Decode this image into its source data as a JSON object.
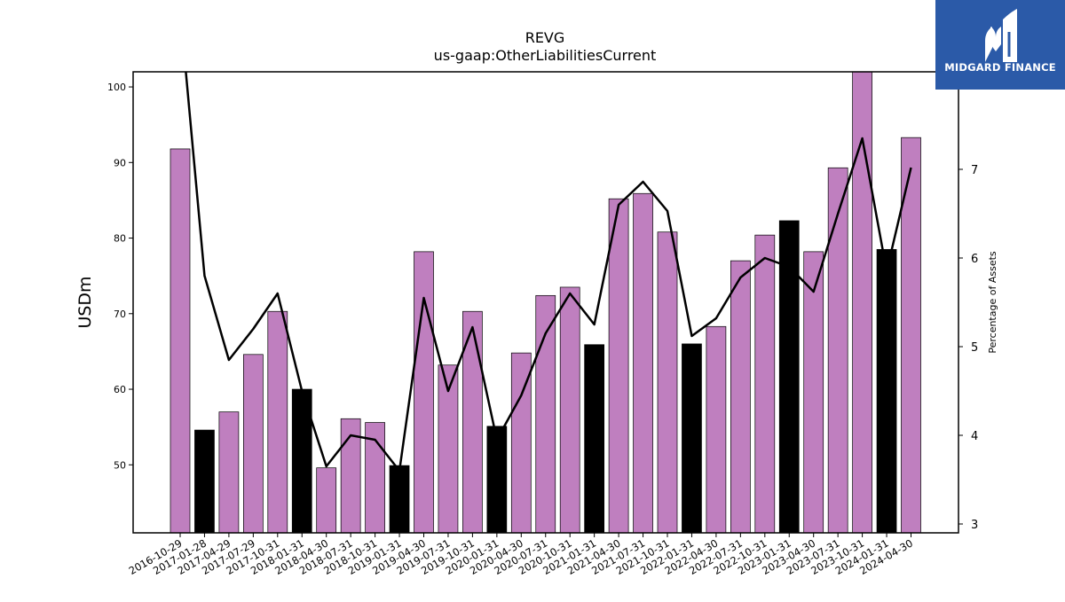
{
  "logo": {
    "text": "MIDGARD FINANCE",
    "background": "#2b5aa8",
    "icon": "midgard-m-logo-icon"
  },
  "chart_data": {
    "type": "bar",
    "title": "REVG",
    "subtitle": "us-gaap:OtherLiabilitiesCurrent",
    "ylabel": "USDm",
    "y2label": "Percentage of Assets",
    "ylim": [
      41,
      102
    ],
    "y2lim": [
      2.9,
      8.1
    ],
    "yticks": [
      50,
      60,
      70,
      80,
      90,
      100
    ],
    "y2ticks": [
      3,
      4,
      5,
      6,
      7
    ],
    "grid": false,
    "colors": {
      "normal": "#bf7fbf",
      "highlight": "#000000",
      "line": "#000000"
    },
    "categories": [
      "2016-10-29",
      "2017-01-28",
      "2017-04-29",
      "2017-07-29",
      "2017-10-31",
      "2018-01-31",
      "2018-04-30",
      "2018-07-31",
      "2018-10-31",
      "2019-01-31",
      "2019-04-30",
      "2019-07-31",
      "2019-10-31",
      "2020-01-31",
      "2020-04-30",
      "2020-07-31",
      "2020-10-31",
      "2021-01-31",
      "2021-04-30",
      "2021-07-31",
      "2021-10-31",
      "2022-01-31",
      "2022-04-30",
      "2022-07-31",
      "2022-10-31",
      "2023-01-31",
      "2023-04-30",
      "2023-07-31",
      "2023-10-31",
      "2024-01-31",
      "2024-04-30"
    ],
    "series": [
      {
        "type": "bar",
        "values": [
          91.8,
          54.6,
          57.0,
          64.6,
          70.3,
          60.0,
          49.6,
          56.1,
          55.6,
          49.9,
          78.2,
          63.2,
          70.3,
          55.1,
          64.8,
          72.4,
          73.5,
          65.9,
          85.2,
          85.9,
          80.8,
          66.0,
          68.3,
          77.0,
          80.4,
          82.3,
          78.2,
          89.3,
          102.0,
          78.5,
          93.3
        ],
        "highlight": [
          false,
          true,
          false,
          false,
          false,
          true,
          false,
          false,
          false,
          true,
          false,
          false,
          false,
          true,
          false,
          false,
          false,
          true,
          false,
          false,
          false,
          true,
          false,
          false,
          false,
          true,
          false,
          false,
          false,
          true,
          false
        ]
      },
      {
        "type": "line",
        "axis": "right",
        "values": [
          8.8,
          5.8,
          4.85,
          5.2,
          5.6,
          4.5,
          3.65,
          4.0,
          3.95,
          3.6,
          5.55,
          4.5,
          5.22,
          3.95,
          4.45,
          5.15,
          5.6,
          5.25,
          6.6,
          6.86,
          6.53,
          5.12,
          5.32,
          5.78,
          6.0,
          5.9,
          5.62,
          6.5,
          7.35,
          5.85,
          7.02
        ]
      }
    ]
  }
}
